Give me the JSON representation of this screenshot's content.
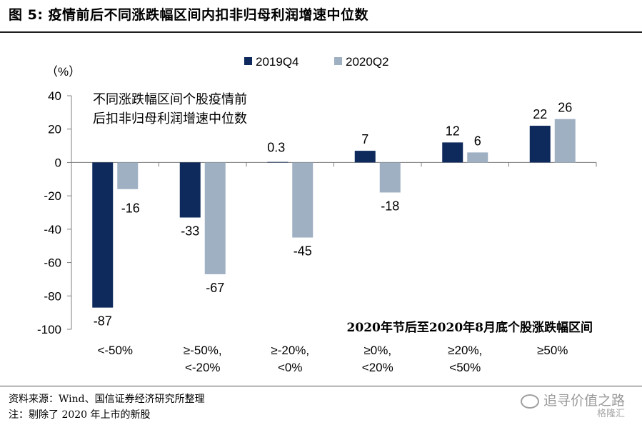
{
  "figure_title": "图  5:  疫情前后不同涨跌幅区间内扣非归母利润增速中位数",
  "footer": {
    "source": "资料来源：Wind、国信证券经济研究所整理",
    "note": "注：剔除了 2020 年上市的新股"
  },
  "watermark": {
    "main": "追寻价值之路",
    "sub": "格隆汇"
  },
  "colors": {
    "series_2019Q4": "#0e2a5c",
    "series_2020Q2": "#9fb0c3",
    "axis": "#7f7f7f",
    "rule": "#1f1f1f"
  },
  "chart_data": {
    "type": "bar",
    "unit_label": "（%）",
    "annotation": [
      "不同涨跌幅区间个股疫情前",
      "后扣非归母利润增速中位数"
    ],
    "xlabel": "2020年节后至2020年8月底个股涨跌幅区间",
    "categories": [
      [
        "<-50%"
      ],
      [
        "≥-50%,",
        "<-20%"
      ],
      [
        "≥-20%,",
        "<0%"
      ],
      [
        "≥0%,",
        "<20%"
      ],
      [
        "≥20%,",
        "<50%"
      ],
      [
        "≥50%"
      ]
    ],
    "series": [
      {
        "name": "2019Q4",
        "values": [
          -87,
          -33,
          0.3,
          7,
          12,
          22
        ],
        "labels": [
          "-87",
          "-33",
          "0.3",
          "7",
          "12",
          "22"
        ]
      },
      {
        "name": "2020Q2",
        "values": [
          -16,
          -67,
          -45,
          -18,
          6,
          26
        ],
        "labels": [
          "-16",
          "-67",
          "-45",
          "-18",
          "6",
          "26"
        ]
      }
    ],
    "ylim": [
      -100,
      40
    ],
    "yticks": [
      40,
      20,
      0,
      -20,
      -40,
      -60,
      -80,
      -100
    ],
    "grid": false,
    "legend_position": "top-center"
  }
}
